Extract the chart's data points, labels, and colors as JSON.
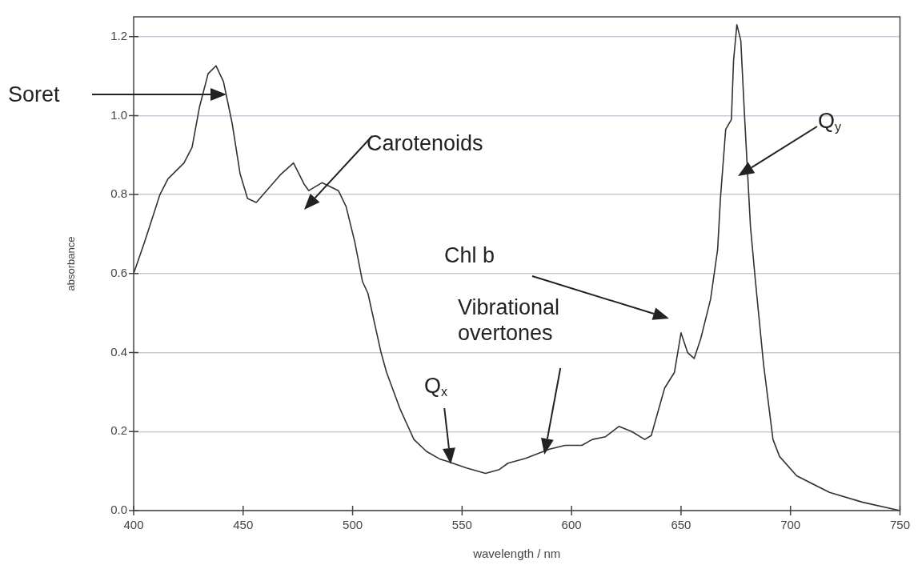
{
  "chart_data": {
    "type": "line",
    "xlabel": "wavelength / nm",
    "ylabel": "absorbance",
    "xlim": [
      400,
      750
    ],
    "xticks": [
      400,
      450,
      500,
      550,
      600,
      650,
      700,
      750
    ],
    "ylim": [
      0,
      1.25
    ],
    "yticks": [
      {
        "value": 0,
        "label": "0.0"
      },
      {
        "value": 0.2,
        "label": "0.2"
      },
      {
        "value": 0.4,
        "label": "0.4"
      },
      {
        "value": 0.6,
        "label": "0.6"
      },
      {
        "value": 0.8,
        "label": "0.8"
      },
      {
        "value": 1,
        "label": "1.0"
      },
      {
        "value": 1.2,
        "label": "1.2"
      }
    ],
    "grid": "y",
    "x": [
      400,
      405,
      412,
      415.7,
      423,
      426.7,
      430,
      434,
      437.6,
      441,
      445,
      448.6,
      452,
      456,
      460.7,
      467,
      473,
      478,
      480,
      486,
      493.5,
      497,
      501,
      504.5,
      507,
      513,
      515.5,
      521.7,
      528,
      533.7,
      540,
      543,
      552,
      560.7,
      567,
      571,
      579,
      589.6,
      597,
      604.7,
      609.5,
      615.5,
      621.6,
      627.5,
      633.4,
      636.4,
      642.5,
      647,
      650,
      653,
      656,
      659,
      663.5,
      666.7,
      668,
      670.4,
      673,
      674,
      675.5,
      677.3,
      679,
      681.7,
      684,
      687.7,
      692,
      695,
      702.8,
      717.8,
      733,
      750
    ],
    "series": [
      {
        "color": "#333333",
        "values": [
          0.6,
          0.68,
          0.8,
          0.84,
          0.88,
          0.92,
          1.02,
          1.106,
          1.126,
          1.086,
          0.98,
          0.853,
          0.79,
          0.78,
          0.81,
          0.85,
          0.88,
          0.825,
          0.81,
          0.83,
          0.81,
          0.77,
          0.68,
          0.58,
          0.55,
          0.4,
          0.35,
          0.257,
          0.18,
          0.15,
          0.13,
          0.125,
          0.108,
          0.094,
          0.104,
          0.12,
          0.132,
          0.155,
          0.165,
          0.165,
          0.18,
          0.187,
          0.213,
          0.2,
          0.18,
          0.19,
          0.31,
          0.35,
          0.45,
          0.4,
          0.385,
          0.435,
          0.535,
          0.66,
          0.79,
          0.965,
          0.99,
          1.14,
          1.23,
          1.19,
          1.0,
          0.72,
          0.58,
          0.37,
          0.18,
          0.137,
          0.088,
          0.046,
          0.021,
          0
        ]
      }
    ],
    "annotations": [
      "Soret",
      "Carotenoids",
      "Q$_{x}$",
      "Vibrational overtones",
      "Chl b",
      "Q$_{y}$"
    ]
  }
}
